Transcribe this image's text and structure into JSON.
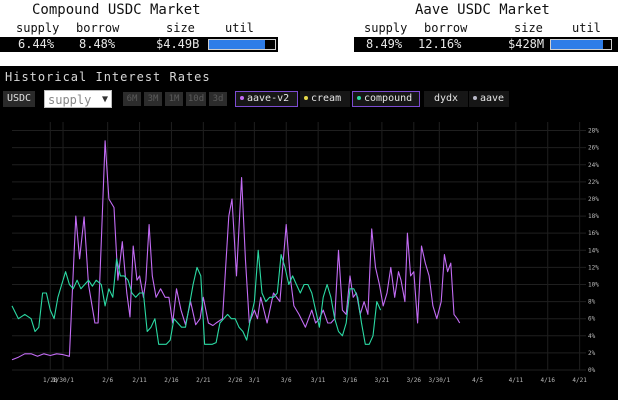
{
  "compound": {
    "title": "Compound USDC Market",
    "headers": {
      "supply": "supply",
      "borrow": "borrow",
      "size": "size",
      "util": "util"
    },
    "supply": "6.44%",
    "borrow": "8.48%",
    "size": "$4.49B",
    "util_fraction": 0.85
  },
  "aave": {
    "title": "Aave USDC Market",
    "headers": {
      "supply": "supply",
      "borrow": "borrow",
      "size": "size",
      "util": "util"
    },
    "supply": "8.49%",
    "borrow": "12.16%",
    "size": "$428M",
    "util_fraction": 0.87
  },
  "chart_panel": {
    "title": "Historical Interest Rates",
    "asset": "USDC",
    "select_value": "supply",
    "ranges": [
      "6M",
      "3M",
      "1M",
      "10d",
      "3d"
    ],
    "sources": [
      {
        "label": "aave-v2",
        "dot": "#c36cf5",
        "active": true
      },
      {
        "label": "cream",
        "dot": "#e6d84a",
        "active": false
      },
      {
        "label": "compound",
        "dot": "#2bd9a3",
        "active": true
      },
      {
        "label": "dydx",
        "dot": "",
        "active": false
      },
      {
        "label": "aave",
        "dot": "#b9b9c9",
        "active": false
      }
    ]
  },
  "chart_data": {
    "type": "line",
    "ylim": [
      0,
      29
    ],
    "grid": true,
    "yticks": [
      "0%",
      "2%",
      "4%",
      "6%",
      "8%",
      "10%",
      "12%",
      "14%",
      "16%",
      "18%",
      "20%",
      "22%",
      "24%",
      "26%",
      "28%"
    ],
    "xticks": [
      {
        "label": "1/28",
        "day": 6
      },
      {
        "label": "1/30/1",
        "day": 8
      },
      {
        "label": "2/6",
        "day": 15
      },
      {
        "label": "2/11",
        "day": 20
      },
      {
        "label": "2/16",
        "day": 25
      },
      {
        "label": "2/21",
        "day": 30
      },
      {
        "label": "2/26",
        "day": 35
      },
      {
        "label": "3/1",
        "day": 38
      },
      {
        "label": "3/6",
        "day": 43
      },
      {
        "label": "3/11",
        "day": 48
      },
      {
        "label": "3/16",
        "day": 53
      },
      {
        "label": "3/21",
        "day": 58
      },
      {
        "label": "3/26",
        "day": 63
      },
      {
        "label": "3/30/1",
        "day": 67
      },
      {
        "label": "4/5",
        "day": 73
      },
      {
        "label": "4/11",
        "day": 79
      },
      {
        "label": "4/16",
        "day": 84
      },
      {
        "label": "4/21",
        "day": 89
      }
    ],
    "series": [
      {
        "name": "aave-v2",
        "color": "#c36cf5",
        "values": [
          [
            0,
            1.2
          ],
          [
            1,
            1.5
          ],
          [
            2,
            1.9
          ],
          [
            3,
            1.9
          ],
          [
            4,
            1.6
          ],
          [
            5,
            1.9
          ],
          [
            6,
            1.7
          ],
          [
            7,
            1.9
          ],
          [
            8,
            1.8
          ],
          [
            9,
            1.6
          ],
          [
            10,
            18
          ],
          [
            10.6,
            13
          ],
          [
            11.3,
            17.9
          ],
          [
            12,
            10
          ],
          [
            13,
            5.5
          ],
          [
            13.5,
            5.5
          ],
          [
            14,
            15
          ],
          [
            14.6,
            26.8
          ],
          [
            15.2,
            20
          ],
          [
            16,
            19
          ],
          [
            16.6,
            10.5
          ],
          [
            17.3,
            15
          ],
          [
            18,
            9
          ],
          [
            18.5,
            6.2
          ],
          [
            19,
            14.5
          ],
          [
            19.6,
            10.5
          ],
          [
            20,
            11
          ],
          [
            20.6,
            8.5
          ],
          [
            21,
            10.5
          ],
          [
            21.5,
            17
          ],
          [
            22,
            11
          ],
          [
            22.6,
            8.5
          ],
          [
            23.3,
            9.5
          ],
          [
            24,
            8.5
          ],
          [
            24.6,
            8.5
          ],
          [
            25.2,
            5.5
          ],
          [
            25.8,
            9.5
          ],
          [
            26.5,
            7
          ],
          [
            27.2,
            5.3
          ],
          [
            28,
            8
          ],
          [
            28.8,
            5.3
          ],
          [
            29.5,
            6
          ],
          [
            30,
            8.5
          ],
          [
            30.8,
            5.5
          ],
          [
            31.5,
            5.2
          ],
          [
            32,
            5.5
          ],
          [
            33,
            6
          ],
          [
            34,
            18
          ],
          [
            34.5,
            20
          ],
          [
            35.2,
            11
          ],
          [
            36,
            22.5
          ],
          [
            36.6,
            13
          ],
          [
            37.2,
            5.5
          ],
          [
            38,
            7
          ],
          [
            38.5,
            6
          ],
          [
            39,
            8.5
          ],
          [
            40,
            5.5
          ],
          [
            41,
            9
          ],
          [
            42,
            8
          ],
          [
            43,
            17
          ],
          [
            43.6,
            11
          ],
          [
            44.2,
            7.5
          ],
          [
            45,
            6.5
          ],
          [
            46,
            5
          ],
          [
            46.5,
            6
          ],
          [
            47,
            7
          ],
          [
            47.6,
            5.5
          ],
          [
            48.2,
            6
          ],
          [
            48.8,
            7
          ],
          [
            49.5,
            5.5
          ],
          [
            50,
            5.5
          ],
          [
            50.6,
            6
          ],
          [
            51.2,
            14
          ],
          [
            51.8,
            7
          ],
          [
            52.4,
            6.5
          ],
          [
            53,
            11
          ],
          [
            53.5,
            8.5
          ],
          [
            54,
            9
          ],
          [
            54.6,
            6.5
          ],
          [
            55.2,
            8
          ],
          [
            55.8,
            6.5
          ],
          [
            56.4,
            16.5
          ],
          [
            57,
            12
          ],
          [
            57.6,
            10
          ],
          [
            58.2,
            7.5
          ],
          [
            58.8,
            9
          ],
          [
            59.4,
            12
          ],
          [
            60,
            8.5
          ],
          [
            60.6,
            11.5
          ],
          [
            61,
            10.5
          ],
          [
            61.6,
            8
          ],
          [
            62,
            16
          ],
          [
            62.5,
            11
          ],
          [
            63,
            11.5
          ],
          [
            63.6,
            5.5
          ],
          [
            64.2,
            14.5
          ],
          [
            64.8,
            12.5
          ],
          [
            65.4,
            11
          ],
          [
            66,
            7.5
          ],
          [
            66.6,
            6
          ],
          [
            67.3,
            8
          ],
          [
            67.8,
            13.5
          ],
          [
            68.3,
            11.5
          ],
          [
            68.8,
            12.5
          ],
          [
            69.3,
            6.5
          ],
          [
            69.8,
            6
          ],
          [
            70.2,
            5.5
          ]
        ]
      },
      {
        "name": "compound",
        "color": "#2bd9a3",
        "values": [
          [
            0,
            7.5
          ],
          [
            1,
            6
          ],
          [
            2,
            6.5
          ],
          [
            3,
            6
          ],
          [
            3.6,
            4.5
          ],
          [
            4.2,
            5
          ],
          [
            4.8,
            9
          ],
          [
            5.4,
            9
          ],
          [
            6,
            7
          ],
          [
            6.6,
            6
          ],
          [
            7.2,
            8.5
          ],
          [
            7.8,
            10
          ],
          [
            8.4,
            11.5
          ],
          [
            9,
            10
          ],
          [
            9.6,
            9.5
          ],
          [
            10.2,
            10.5
          ],
          [
            10.8,
            9.5
          ],
          [
            11.4,
            10
          ],
          [
            12,
            10.5
          ],
          [
            12.6,
            9.8
          ],
          [
            13.2,
            10.5
          ],
          [
            14,
            10
          ],
          [
            14.6,
            7.5
          ],
          [
            15.2,
            9.5
          ],
          [
            15.8,
            8.5
          ],
          [
            16.4,
            13
          ],
          [
            17,
            11
          ],
          [
            17.6,
            11
          ],
          [
            18.2,
            10.5
          ],
          [
            18.8,
            9
          ],
          [
            19.4,
            8.5
          ],
          [
            20,
            9
          ],
          [
            20.6,
            9
          ],
          [
            21.2,
            4.5
          ],
          [
            21.8,
            5
          ],
          [
            22.4,
            6
          ],
          [
            23,
            3
          ],
          [
            23.6,
            3
          ],
          [
            24.2,
            3
          ],
          [
            24.8,
            3.5
          ],
          [
            25.4,
            6
          ],
          [
            26,
            5.5
          ],
          [
            26.6,
            5
          ],
          [
            27.2,
            5
          ],
          [
            27.8,
            7.5
          ],
          [
            28.4,
            10
          ],
          [
            29,
            12
          ],
          [
            29.6,
            11
          ],
          [
            30.2,
            3
          ],
          [
            30.8,
            3
          ],
          [
            31.4,
            3
          ],
          [
            32,
            3.2
          ],
          [
            32.6,
            5.5
          ],
          [
            33.2,
            6
          ],
          [
            33.8,
            6.5
          ],
          [
            34.4,
            6
          ],
          [
            35,
            6
          ],
          [
            35.6,
            5
          ],
          [
            36.2,
            4.5
          ],
          [
            36.8,
            3.5
          ],
          [
            37.4,
            6
          ],
          [
            38,
            8
          ],
          [
            38.6,
            14
          ],
          [
            39.2,
            9
          ],
          [
            39.8,
            8
          ],
          [
            40.4,
            8.5
          ],
          [
            41,
            8.5
          ],
          [
            41.6,
            9
          ],
          [
            42.2,
            13.5
          ],
          [
            42.8,
            12
          ],
          [
            43.4,
            10
          ],
          [
            44,
            11
          ],
          [
            44.6,
            10
          ],
          [
            45.2,
            9
          ],
          [
            45.8,
            10
          ],
          [
            46.4,
            10
          ],
          [
            47,
            9
          ],
          [
            47.6,
            7
          ],
          [
            48.2,
            5
          ],
          [
            48.8,
            8.5
          ],
          [
            49.4,
            10
          ],
          [
            50,
            8.5
          ],
          [
            50.6,
            6
          ],
          [
            51.2,
            4.5
          ],
          [
            51.8,
            4
          ],
          [
            52.4,
            5.5
          ],
          [
            53,
            9.5
          ],
          [
            53.6,
            9.5
          ],
          [
            54.2,
            8.5
          ],
          [
            54.8,
            5.5
          ],
          [
            55.4,
            3
          ],
          [
            56,
            3
          ],
          [
            56.6,
            4
          ],
          [
            57.2,
            8
          ],
          [
            57.8,
            7
          ]
        ]
      }
    ]
  }
}
